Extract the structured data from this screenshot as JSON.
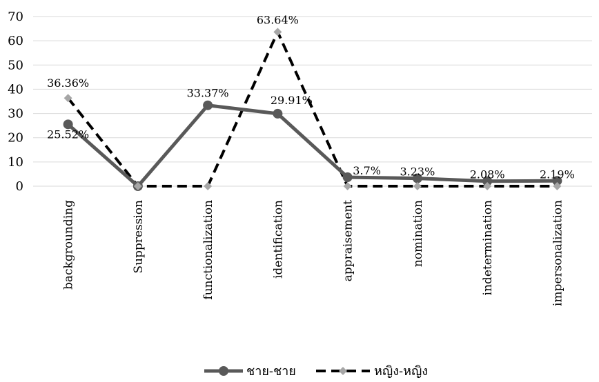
{
  "chart_data": {
    "type": "line",
    "categories": [
      "backgrounding",
      "Suppression",
      "functionalization",
      "identification",
      "appraisement",
      "nomination",
      "indetermination",
      "impersonalization"
    ],
    "ylim": [
      0,
      70
    ],
    "yticks": [
      0,
      10,
      20,
      30,
      40,
      50,
      60,
      70
    ],
    "grid": true,
    "legend_position": "bottom",
    "series": [
      {
        "name": "ชาย-ชาย",
        "values": [
          25.52,
          0,
          33.37,
          29.91,
          3.7,
          3.23,
          2.08,
          2.19
        ],
        "labels": [
          "25.52%",
          "",
          "33.37%",
          "29.91%",
          "3.7%",
          "3.23%",
          "2.08%",
          "2.19%"
        ],
        "color": "#595959",
        "style": "solid",
        "marker": "circle"
      },
      {
        "name": "หญิง-หญิง",
        "values": [
          36.36,
          0,
          0,
          63.64,
          0,
          0,
          0,
          0
        ],
        "labels": [
          "36.36%",
          "",
          "",
          "63.64%",
          "",
          "",
          "",
          ""
        ],
        "color": "#000000",
        "style": "dashed",
        "marker": "diamond",
        "marker_color": "#a6a6a6"
      }
    ]
  }
}
